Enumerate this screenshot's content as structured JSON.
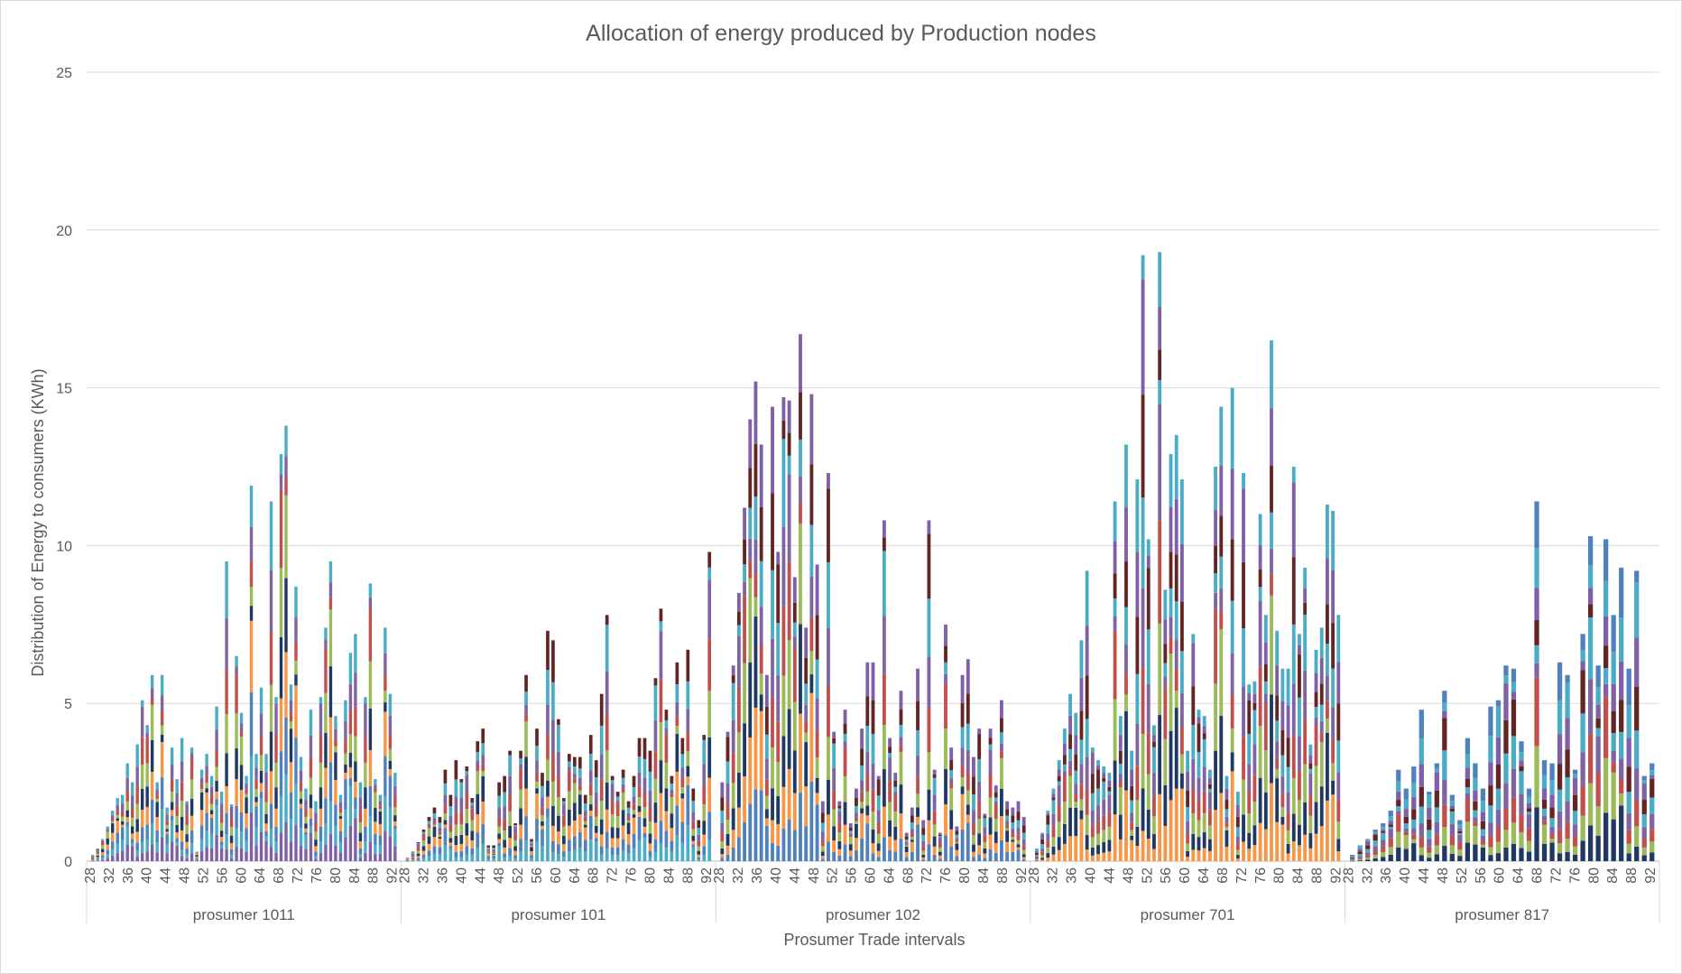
{
  "chart_data": {
    "type": "bar",
    "stacked": true,
    "title": "Allocation of energy produced by Production nodes",
    "xlabel": "Prosumer Trade intervals",
    "ylabel": "Distribution of Energy to consumers (KWh)",
    "ylim": [
      0,
      25
    ],
    "yticks": [
      0,
      5,
      10,
      15,
      20,
      25
    ],
    "grid": true,
    "legend": "none",
    "interval_range": [
      28,
      92
    ],
    "interval_tick_labels": [
      "28",
      "32",
      "36",
      "40",
      "44",
      "48",
      "52",
      "56",
      "60",
      "64",
      "68",
      "72",
      "76",
      "80",
      "84",
      "88",
      "92"
    ],
    "segment_colors": [
      "#7f5fa8",
      "#4aacc6",
      "#4f81bd",
      "#f79646",
      "#1f3864",
      "#9bbb59",
      "#c0504d",
      "#8064a2",
      "#4bacc6",
      "#632523"
    ],
    "groups": [
      {
        "name": "prosumer 1011",
        "totals": [
          0.2,
          0.4,
          0.7,
          1.1,
          1.6,
          2.0,
          2.1,
          3.1,
          2.5,
          3.7,
          5.1,
          4.3,
          5.9,
          2.5,
          5.9,
          1.7,
          3.6,
          2.6,
          3.9,
          1.9,
          3.6,
          0.3,
          2.9,
          3.4,
          2.7,
          4.9,
          2.2,
          9.5,
          1.8,
          6.5,
          4.7,
          2.7,
          11.9,
          3.4,
          5.5,
          3.4,
          11.4,
          5.2,
          12.9,
          13.8,
          5.6,
          8.7,
          3.3,
          2.3,
          4.8,
          1.9,
          5.2,
          7.4,
          9.5,
          4.6,
          2.1,
          5.1,
          6.6,
          7.2,
          2.5,
          5.2,
          8.8,
          2.6,
          2.1,
          7.4,
          5.3,
          2.8
        ]
      },
      {
        "name": "prosumer 101",
        "totals": [
          0.1,
          0.3,
          0.6,
          1.0,
          1.4,
          1.7,
          1.4,
          2.9,
          2.1,
          3.2,
          2.6,
          3.0,
          2.0,
          3.8,
          4.2,
          0.5,
          0.5,
          2.5,
          2.7,
          3.5,
          1.2,
          3.5,
          5.9,
          0.7,
          4.2,
          2.8,
          7.3,
          7.0,
          4.5,
          2.0,
          3.4,
          3.3,
          3.3,
          2.1,
          4.0,
          3.2,
          5.3,
          7.8,
          2.7,
          2.2,
          2.9,
          1.9,
          2.7,
          3.9,
          3.9,
          3.5,
          5.8,
          8.0,
          4.8,
          2.7,
          6.3,
          3.9,
          6.7,
          2.3,
          1.3,
          4.0,
          9.8
        ]
      },
      {
        "name": "prosumer 102",
        "totals": [
          2.5,
          4.1,
          6.2,
          8.5,
          11.2,
          14.0,
          15.2,
          13.2,
          5.9,
          14.4,
          9.8,
          14.7,
          14.6,
          9.0,
          16.7,
          7.4,
          14.8,
          9.4,
          1.9,
          12.3,
          4.1,
          1.9,
          4.8,
          1.2,
          2.3,
          4.2,
          6.3,
          6.3,
          2.7,
          10.8,
          3.9,
          2.8,
          5.4,
          0.9,
          1.7,
          6.1,
          1.3,
          10.8,
          2.9,
          0.9,
          7.5,
          3.6,
          1.1,
          5.9,
          6.4,
          3.3,
          4.2,
          1.5,
          4.2,
          2.4,
          5.1,
          1.9,
          1.7,
          1.9,
          1.4
        ]
      },
      {
        "name": "prosumer 701",
        "totals": [
          0.4,
          0.9,
          1.6,
          2.3,
          3.2,
          4.2,
          5.3,
          4.7,
          7.0,
          9.2,
          3.6,
          3.2,
          3.0,
          2.8,
          11.4,
          4.6,
          13.2,
          3.5,
          12.1,
          19.2,
          10.2,
          4.3,
          19.3,
          8.6,
          12.9,
          13.5,
          12.1,
          3.5,
          7.2,
          4.8,
          4.6,
          2.9,
          12.5,
          14.4,
          2.7,
          15.0,
          2.2,
          12.3,
          5.6,
          5.7,
          11.0,
          7.8,
          16.5,
          7.3,
          6.1,
          6.1,
          12.5,
          7.2,
          9.3,
          3.7,
          6.7,
          7.4,
          11.3,
          11.1,
          7.8
        ]
      },
      {
        "name": "prosumer 817",
        "totals": [
          0.2,
          0.5,
          0.7,
          1.0,
          1.2,
          1.6,
          2.9,
          2.3,
          3.0,
          4.8,
          2.2,
          3.1,
          5.4,
          2.1,
          1.3,
          3.9,
          3.1,
          2.3,
          4.9,
          5.1,
          6.2,
          6.1,
          3.8,
          2.3,
          11.4,
          3.2,
          3.1,
          6.3,
          5.9,
          2.9,
          7.2,
          10.3,
          6.2,
          10.2,
          7.8,
          9.3,
          6.1,
          9.2,
          2.7,
          3.1
        ]
      }
    ]
  }
}
